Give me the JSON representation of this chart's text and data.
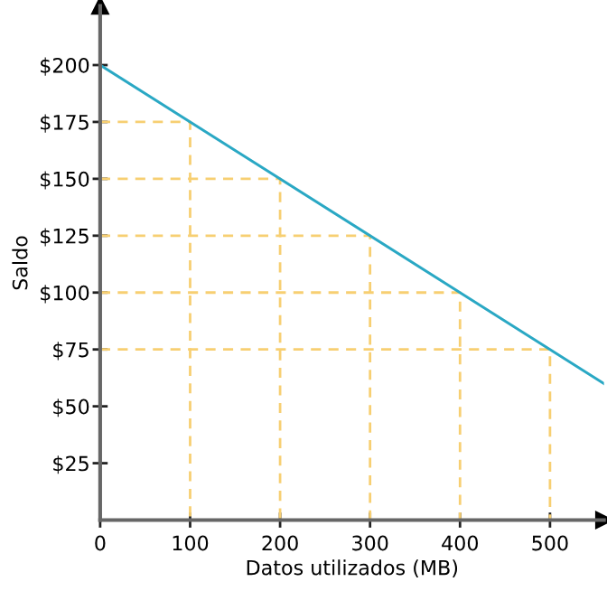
{
  "chart_data": {
    "type": "line",
    "xlabel": "Datos utilizados (MB)",
    "ylabel": "Saldo",
    "xlim": [
      0,
      560
    ],
    "ylim": [
      0,
      226
    ],
    "xticks": [
      0,
      100,
      200,
      300,
      400,
      500
    ],
    "yticks": [
      {
        "value": 25,
        "label": "$25"
      },
      {
        "value": 50,
        "label": "$50"
      },
      {
        "value": 75,
        "label": "$75"
      },
      {
        "value": 100,
        "label": "$100"
      },
      {
        "value": 125,
        "label": "$125"
      },
      {
        "value": 150,
        "label": "$150"
      },
      {
        "value": 175,
        "label": "$175"
      },
      {
        "value": 200,
        "label": "$200"
      }
    ],
    "grid": false,
    "legend": false,
    "series": [
      {
        "color": "#f7cf72",
        "line_style": "dashed",
        "x": [
          0,
          100,
          100
        ],
        "values": [
          175,
          175,
          0
        ]
      },
      {
        "color": "#f7cf72",
        "line_style": "dashed",
        "x": [
          0,
          200,
          200
        ],
        "values": [
          150,
          150,
          0
        ]
      },
      {
        "color": "#f7cf72",
        "line_style": "dashed",
        "x": [
          0,
          300,
          300
        ],
        "values": [
          125,
          125,
          0
        ]
      },
      {
        "color": "#f7cf72",
        "line_style": "dashed",
        "x": [
          0,
          400,
          400
        ],
        "values": [
          100,
          100,
          0
        ]
      },
      {
        "color": "#f7cf72",
        "line_style": "dashed",
        "x": [
          0,
          500,
          500
        ],
        "values": [
          75,
          75,
          0
        ]
      },
      {
        "color": "#2aa8c4",
        "line_style": "solid",
        "x": [
          0,
          560
        ],
        "values": [
          200,
          60
        ]
      }
    ]
  }
}
